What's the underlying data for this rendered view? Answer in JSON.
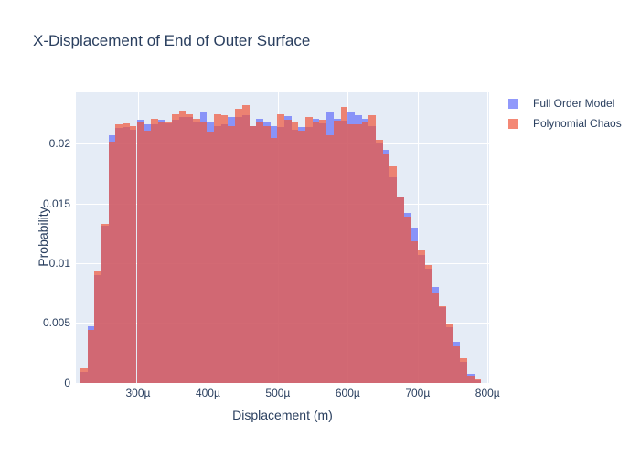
{
  "title": "X-Displacement of End of Outer Surface",
  "colors": {
    "plot_background": "#e5ecf6",
    "gridline": "#ffffff",
    "text": "#2a3f5f",
    "full_order_model": "#636efa",
    "polynomial_chaos": "#ef553b",
    "series_opacity": 0.7
  },
  "legend": {
    "items": [
      {
        "label": "Full Order Model",
        "color": "#636efa"
      },
      {
        "label": "Polynomial Chaos",
        "color": "#ef553b"
      }
    ]
  },
  "chart_data": {
    "type": "bar",
    "subtype": "overlaid-histogram",
    "title": "X-Displacement of End of Outer Surface",
    "xlabel": "Displacement (m)",
    "ylabel": "Probability",
    "x_unit": "µ (microns)",
    "x_ticks": [
      {
        "value": 300,
        "label": "300µ"
      },
      {
        "value": 400,
        "label": "400µ"
      },
      {
        "value": 500,
        "label": "500µ"
      },
      {
        "value": 600,
        "label": "600µ"
      },
      {
        "value": 700,
        "label": "700µ"
      },
      {
        "value": 800,
        "label": "800µ"
      }
    ],
    "y_ticks": [
      {
        "value": 0,
        "label": "0"
      },
      {
        "value": 0.005,
        "label": "0.005"
      },
      {
        "value": 0.01,
        "label": "0.01"
      },
      {
        "value": 0.015,
        "label": "0.015"
      },
      {
        "value": 0.02,
        "label": "0.02"
      }
    ],
    "x_range_mu": [
      211.1,
      802.3
    ],
    "y_range": [
      0,
      0.0243
    ],
    "grid": true,
    "legend_position": "right-top-outside",
    "bin_start_mu": 217.6,
    "bin_width_mu": 10.06,
    "series": [
      {
        "name": "Full Order Model",
        "color": "#636efa",
        "opacity": 0.7,
        "values": [
          0.0009,
          0.0047,
          0.009,
          0.0131,
          0.0207,
          0.0213,
          0.0214,
          0.0212,
          0.022,
          0.0216,
          0.0216,
          0.022,
          0.0217,
          0.022,
          0.0222,
          0.0222,
          0.0218,
          0.0227,
          0.0218,
          0.0215,
          0.0216,
          0.0222,
          0.0222,
          0.0224,
          0.0215,
          0.0221,
          0.0218,
          0.0215,
          0.0214,
          0.0223,
          0.0212,
          0.0214,
          0.0214,
          0.0221,
          0.0217,
          0.0226,
          0.0221,
          0.0219,
          0.0226,
          0.0224,
          0.0221,
          0.0215,
          0.02,
          0.0195,
          0.0172,
          0.0155,
          0.0142,
          0.0129,
          0.0107,
          0.0095,
          0.008,
          0.0063,
          0.0046,
          0.0034,
          0.0017,
          0.0007,
          0.0002
        ]
      },
      {
        "name": "Polynomial Chaos",
        "color": "#ef553b",
        "opacity": 0.7,
        "values": [
          0.0012,
          0.0044,
          0.0093,
          0.0133,
          0.0202,
          0.0216,
          0.0217,
          0.0215,
          0.0218,
          0.0211,
          0.0221,
          0.0218,
          0.0218,
          0.0225,
          0.0228,
          0.0225,
          0.0221,
          0.0218,
          0.021,
          0.0225,
          0.0224,
          0.0215,
          0.0229,
          0.0232,
          0.0215,
          0.0218,
          0.0215,
          0.0205,
          0.0225,
          0.022,
          0.0218,
          0.0211,
          0.0222,
          0.0218,
          0.022,
          0.0207,
          0.0219,
          0.0231,
          0.0216,
          0.0216,
          0.0218,
          0.0224,
          0.0203,
          0.0192,
          0.0181,
          0.0156,
          0.0139,
          0.0118,
          0.0111,
          0.0098,
          0.0075,
          0.0064,
          0.0049,
          0.003,
          0.002,
          0.0006,
          0.0003
        ]
      }
    ]
  }
}
